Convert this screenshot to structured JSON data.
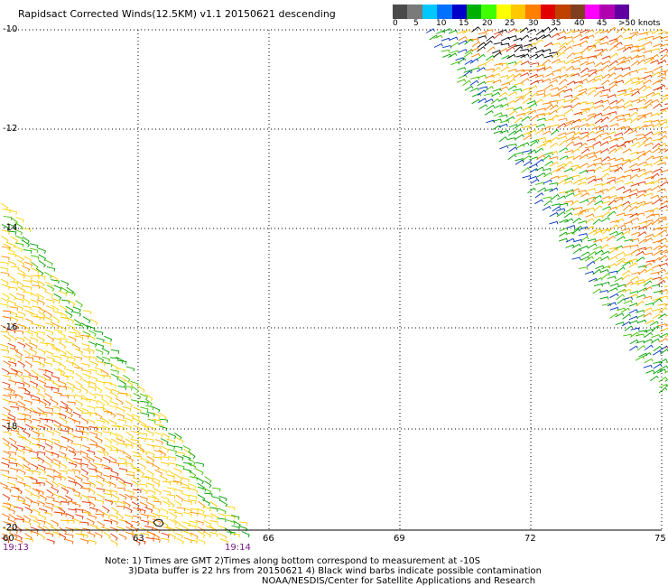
{
  "title": "Rapidsact Corrected Winds(12.5KM) v1.1 20150621 descending",
  "legend": {
    "colors": [
      "#4a4a4a",
      "#7a7a7a",
      "#00c8ff",
      "#0070ff",
      "#0000c8",
      "#00b000",
      "#40ff00",
      "#ffff00",
      "#ffc800",
      "#ff8000",
      "#e00000",
      "#c04000",
      "#804020",
      "#ff00ff",
      "#b000b0",
      "#6000a0"
    ],
    "labels": [
      "0",
      "5",
      "10",
      "15",
      "20",
      "25",
      "30",
      "35",
      "40",
      "45",
      ">50 knots"
    ]
  },
  "latitudes": [
    "-10",
    "-12",
    "-14",
    "-16",
    "-18",
    "-20"
  ],
  "longitudes": [
    "60",
    "63",
    "66",
    "69",
    "72",
    "75"
  ],
  "times": {
    "left": "19:13",
    "right": "19:14"
  },
  "notes": [
    "Note: 1) Times are GMT 2)Times along bottom correspond to measurement at -10S",
    "3)Data buffer is 22 hrs from 20150621 4) Black wind barbs indicate possible contamination",
    "NOAA/NESDIS/Center for Satellite Applications and Research"
  ]
}
